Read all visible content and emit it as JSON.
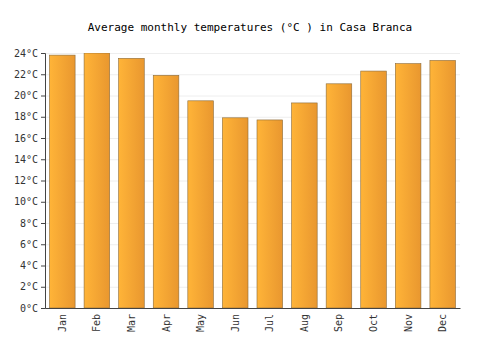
{
  "chart_data": {
    "type": "bar",
    "title": "Average monthly temperatures (°C ) in Casa Branca",
    "categories": [
      "Jan",
      "Feb",
      "Mar",
      "Apr",
      "May",
      "Jun",
      "Jul",
      "Aug",
      "Sep",
      "Oct",
      "Nov",
      "Dec"
    ],
    "values": [
      23.8,
      24.0,
      23.5,
      21.9,
      19.5,
      17.9,
      17.7,
      19.3,
      21.1,
      22.3,
      23.0,
      23.3
    ],
    "color": "#ffa533",
    "ylim": [
      0,
      24
    ],
    "yticks": [
      {
        "value": 0,
        "label": "0°C"
      },
      {
        "value": 2,
        "label": "2°C"
      },
      {
        "value": 4,
        "label": "4°C"
      },
      {
        "value": 6,
        "label": "6°C"
      },
      {
        "value": 8,
        "label": "8°C"
      },
      {
        "value": 10,
        "label": "10°C"
      },
      {
        "value": 12,
        "label": "12°C"
      },
      {
        "value": 14,
        "label": "14°C"
      },
      {
        "value": 16,
        "label": "16°C"
      },
      {
        "value": 18,
        "label": "18°C"
      },
      {
        "value": 20,
        "label": "20°C"
      },
      {
        "value": 22,
        "label": "22°C"
      },
      {
        "value": 24,
        "label": "24°C"
      }
    ],
    "grid": true
  }
}
